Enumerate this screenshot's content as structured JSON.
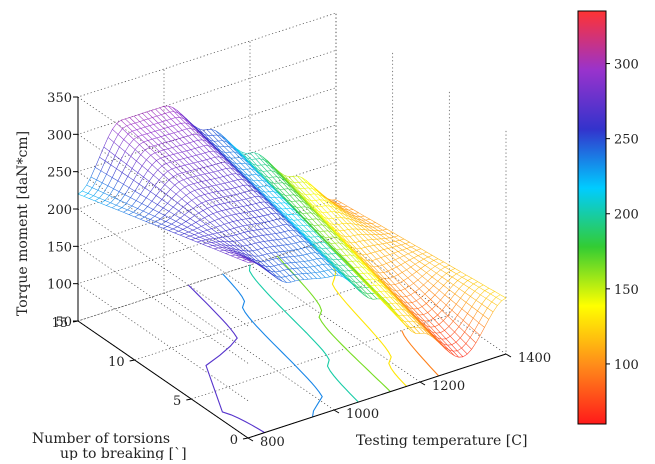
{
  "chart_data": {
    "type": "surface",
    "xlabel": "Testing temperature [C]",
    "ylabel_lines": [
      "Number of torsions",
      "up to breaking [`]"
    ],
    "zlabel": "Torque moment [daN*cm]",
    "x_ticks": [
      800,
      1000,
      1200,
      1400
    ],
    "y_ticks": [
      0,
      5,
      10,
      15
    ],
    "z_ticks": [
      50,
      100,
      150,
      200,
      250,
      300,
      350
    ],
    "colorbar_ticks": [
      100,
      150,
      200,
      250,
      300
    ],
    "xlim": [
      800,
      1400
    ],
    "ylim": [
      0,
      15
    ],
    "zlim": [
      50,
      350
    ],
    "color_range": [
      60,
      335
    ],
    "colormap": [
      "#ff1a1a",
      "#ff8c1a",
      "#ffff00",
      "#33cc33",
      "#00ccff",
      "#3333cc",
      "#9933cc",
      "#ff3333"
    ],
    "surface_profile": {
      "temperature": [
        800,
        900,
        1000,
        1100,
        1200,
        1300,
        1400
      ],
      "torque_at_15_torsions": [
        220,
        300,
        300,
        250,
        200,
        150,
        100
      ],
      "torque_at_0_torsions": [
        285,
        240,
        230,
        180,
        115,
        65,
        125
      ]
    },
    "contour_levels": [
      270,
      235,
      200,
      165,
      130,
      95
    ],
    "grid": true
  }
}
